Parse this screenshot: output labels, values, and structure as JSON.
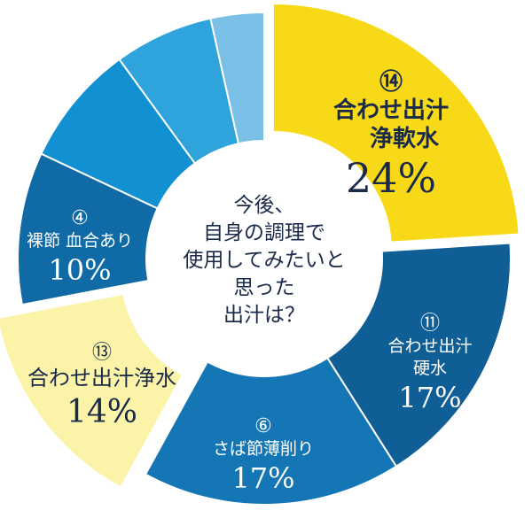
{
  "chart_data": {
    "type": "pie",
    "center_text": [
      "今後、",
      "自身の調理で",
      "使用してみたいと",
      "思った",
      "出汁は？"
    ],
    "slices": [
      {
        "number": "⑭",
        "name_lines": [
          "合わせ出汁",
          "浄軟水"
        ],
        "label": "24%",
        "value": 24,
        "color": "#f7d917",
        "text_color": "#1a2a4a",
        "exploded": true
      },
      {
        "number": "⑪",
        "name_lines": [
          "合わせ出汁",
          "硬水"
        ],
        "label": "17%",
        "value": 17,
        "color": "#0f5f96",
        "text_color": "#ffffff",
        "exploded": false
      },
      {
        "number": "⑥",
        "name_lines": [
          "さば節薄削り"
        ],
        "label": "17%",
        "value": 17,
        "color": "#1576b6",
        "text_color": "#ffffff",
        "exploded": false
      },
      {
        "number": "⑬",
        "name_lines": [
          "合わせ出汁浄水"
        ],
        "label": "14%",
        "value": 14,
        "color": "#fbf3a8",
        "text_color": "#1a2a4a",
        "exploded": true
      },
      {
        "number": "④",
        "name_lines": [
          "裸節 血合あり"
        ],
        "label": "10%",
        "value": 10,
        "color": "#0f6aa6",
        "text_color": "#ffffff",
        "exploded": false
      },
      {
        "number": "",
        "name_lines": [],
        "label": "",
        "value": 8,
        "color": "#1190d2",
        "text_color": "#ffffff",
        "exploded": false
      },
      {
        "number": "",
        "name_lines": [],
        "label": "",
        "value": 6.5,
        "color": "#2ea3dc",
        "text_color": "#ffffff",
        "exploded": false
      },
      {
        "number": "",
        "name_lines": [],
        "label": "",
        "value": 3.5,
        "color": "#79bfe6",
        "text_color": "#ffffff",
        "exploded": false
      }
    ]
  }
}
